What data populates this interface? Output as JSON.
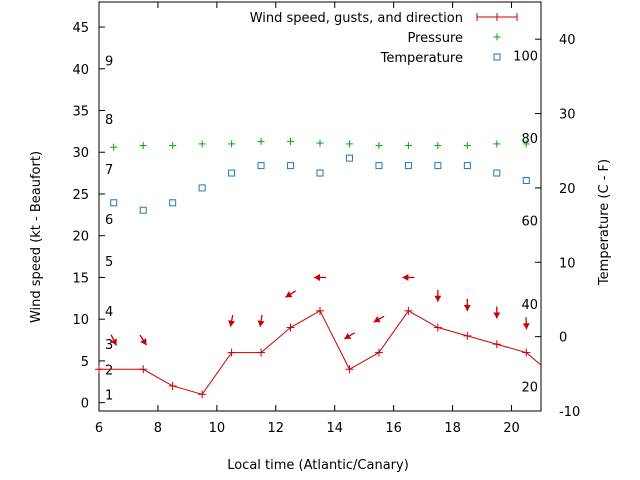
{
  "chart_data": {
    "type": "line",
    "xlabel": "Local time (Atlantic/Canary)",
    "ylabel_left": "Wind speed (kt - Beaufort)",
    "ylabel_right": "Temperature (C - F)",
    "xlim": [
      6,
      21
    ],
    "ylim_left": [
      -1,
      48
    ],
    "ylim_right": [
      -10,
      45
    ],
    "x_ticks": [
      6,
      8,
      10,
      12,
      14,
      16,
      18,
      20
    ],
    "y_left_ticks": [
      0,
      5,
      10,
      15,
      20,
      25,
      30,
      35,
      40,
      45
    ],
    "y_right_ticks": [
      -10,
      0,
      10,
      20,
      30,
      40
    ],
    "beaufort_labels": [
      {
        "label": "1",
        "kt": 1
      },
      {
        "label": "2",
        "kt": 4
      },
      {
        "label": "3",
        "kt": 7
      },
      {
        "label": "4",
        "kt": 11
      },
      {
        "label": "5",
        "kt": 17
      },
      {
        "label": "6",
        "kt": 22
      },
      {
        "label": "7",
        "kt": 28
      },
      {
        "label": "8",
        "kt": 34
      },
      {
        "label": "9",
        "kt": 41
      }
    ],
    "fahrenheit_labels": [
      {
        "label": "20",
        "c": -6.7
      },
      {
        "label": "40",
        "c": 4.4
      },
      {
        "label": "60",
        "c": 15.6
      },
      {
        "label": "80",
        "c": 26.7
      },
      {
        "label": "100",
        "c": 37.8
      }
    ],
    "legend_position": "top-right",
    "series": [
      {
        "name": "Wind speed, gusts, and direction",
        "color": "#cc0000",
        "marker": "plus-line",
        "axis": "left",
        "x": [
          6,
          7.5,
          8.5,
          9.5,
          10.5,
          11.5,
          12.5,
          13.5,
          14.5,
          15.5,
          16.5,
          17.5,
          18.5,
          19.5,
          20.5,
          21
        ],
        "y": [
          4,
          4,
          2,
          1,
          6,
          6,
          9,
          11,
          4,
          6,
          11,
          9,
          8,
          7,
          6,
          4.5
        ]
      },
      {
        "name": "Pressure",
        "color": "#00aa00",
        "marker": "plus",
        "axis": "left",
        "x": [
          6.5,
          7.5,
          8.5,
          9.5,
          10.5,
          11.5,
          12.5,
          13.5,
          14.5,
          15.5,
          16.5,
          17.5,
          18.5,
          19.5,
          20.5
        ],
        "y": [
          30.6,
          30.8,
          30.8,
          31.0,
          31.0,
          31.3,
          31.3,
          31.1,
          31.0,
          30.8,
          30.8,
          30.8,
          30.8,
          31.0,
          31.0
        ]
      },
      {
        "name": "Temperature",
        "color": "#1f77b4",
        "marker": "square",
        "axis": "right",
        "x": [
          6.5,
          7.5,
          8.5,
          9.5,
          10.5,
          11.5,
          12.5,
          13.5,
          14.5,
          15.5,
          16.5,
          17.5,
          18.5,
          19.5,
          20.5
        ],
        "y": [
          18,
          17,
          18,
          20,
          22,
          23,
          23,
          22,
          24,
          23,
          23,
          23,
          23,
          22,
          21
        ]
      }
    ],
    "wind_direction_arrows": {
      "color": "#cc0000",
      "points": [
        {
          "x": 6.5,
          "y": 7.5,
          "dx": 0.5,
          "dy": -1.0
        },
        {
          "x": 7.5,
          "y": 7.5,
          "dx": 0.55,
          "dy": -0.85
        },
        {
          "x": 10.5,
          "y": 9.8,
          "dx": -0.2,
          "dy": -1.0
        },
        {
          "x": 11.5,
          "y": 9.8,
          "dx": -0.15,
          "dy": -1.0
        },
        {
          "x": 12.5,
          "y": 13,
          "dx": -0.8,
          "dy": -0.5
        },
        {
          "x": 13.5,
          "y": 15,
          "dx": -1.0,
          "dy": 0.0
        },
        {
          "x": 14.5,
          "y": 8,
          "dx": -0.85,
          "dy": -0.5
        },
        {
          "x": 15.5,
          "y": 10,
          "dx": -0.8,
          "dy": -0.45
        },
        {
          "x": 16.5,
          "y": 15,
          "dx": -1.0,
          "dy": 0.0
        },
        {
          "x": 17.5,
          "y": 12.8,
          "dx": 0.0,
          "dy": -1.0
        },
        {
          "x": 18.5,
          "y": 11.7,
          "dx": 0.0,
          "dy": -1.0
        },
        {
          "x": 19.5,
          "y": 10.8,
          "dx": 0.0,
          "dy": -1.0
        },
        {
          "x": 20.5,
          "y": 9.5,
          "dx": 0.05,
          "dy": -1.0
        }
      ]
    }
  }
}
